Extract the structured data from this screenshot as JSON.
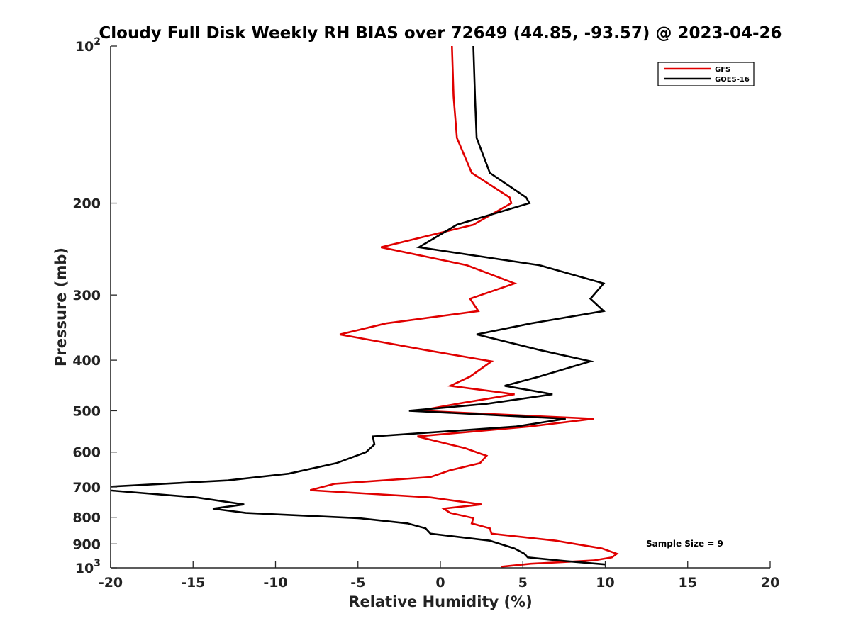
{
  "chart_data": {
    "type": "line",
    "title": "Cloudy Full Disk Weekly RH BIAS over 72649 (44.85, -93.57) @ 2023-04-26",
    "xlabel": "Relative Humidity (%)",
    "ylabel": "Pressure (mb)",
    "xlim": [
      -20,
      20
    ],
    "ylim": [
      100,
      1000
    ],
    "y_scale": "log",
    "y_reversed": true,
    "grid": false,
    "legend_position": "top-right",
    "x_ticks": [
      "-20",
      "-15",
      "-10",
      "-5",
      "0",
      "5",
      "10",
      "15",
      "20"
    ],
    "y_ticks": [
      {
        "value": 100,
        "base": "10",
        "exp": "2"
      },
      {
        "value": 200,
        "label": "200"
      },
      {
        "value": 300,
        "label": "300"
      },
      {
        "value": 400,
        "label": "400"
      },
      {
        "value": 500,
        "label": "500"
      },
      {
        "value": 600,
        "label": "600"
      },
      {
        "value": 700,
        "label": "700"
      },
      {
        "value": 800,
        "label": "800"
      },
      {
        "value": 900,
        "label": "900"
      },
      {
        "value": 1000,
        "base": "10",
        "exp": "3"
      }
    ],
    "annotation": "Sample Size = 9",
    "series": [
      {
        "name": "GFS",
        "color": "#e00000",
        "points": [
          [
            0.7,
            100
          ],
          [
            0.8,
            125
          ],
          [
            1.0,
            150
          ],
          [
            1.9,
            175
          ],
          [
            4.2,
            195
          ],
          [
            4.3,
            200
          ],
          [
            2.0,
            220
          ],
          [
            -3.6,
            243
          ],
          [
            1.6,
            263
          ],
          [
            4.5,
            285
          ],
          [
            1.8,
            305
          ],
          [
            2.3,
            322
          ],
          [
            -3.3,
            340
          ],
          [
            -6.1,
            357
          ],
          [
            -0.8,
            383
          ],
          [
            3.1,
            402
          ],
          [
            1.8,
            430
          ],
          [
            0.6,
            448
          ],
          [
            4.5,
            465
          ],
          [
            1.0,
            485
          ],
          [
            -1.3,
            500
          ],
          [
            9.3,
            518
          ],
          [
            5.4,
            536
          ],
          [
            -1.4,
            560
          ],
          [
            1.5,
            590
          ],
          [
            2.8,
            610
          ],
          [
            2.4,
            630
          ],
          [
            0.6,
            650
          ],
          [
            -0.6,
            670
          ],
          [
            -6.4,
            690
          ],
          [
            -7.9,
            710
          ],
          [
            -0.6,
            733
          ],
          [
            2.5,
            756
          ],
          [
            0.2,
            770
          ],
          [
            0.6,
            785
          ],
          [
            2.0,
            803
          ],
          [
            1.9,
            822
          ],
          [
            3.0,
            840
          ],
          [
            3.1,
            860
          ],
          [
            7.0,
            887
          ],
          [
            9.8,
            918
          ],
          [
            10.7,
            940
          ],
          [
            10.4,
            955
          ],
          [
            9.3,
            968
          ],
          [
            5.5,
            982
          ],
          [
            3.7,
            995
          ]
        ]
      },
      {
        "name": "GOES-16",
        "color": "#000000",
        "points": [
          [
            2.0,
            100
          ],
          [
            2.1,
            125
          ],
          [
            2.2,
            150
          ],
          [
            3.0,
            175
          ],
          [
            5.2,
            195
          ],
          [
            5.4,
            200
          ],
          [
            1.0,
            220
          ],
          [
            -1.3,
            243
          ],
          [
            6.0,
            263
          ],
          [
            9.9,
            285
          ],
          [
            9.1,
            305
          ],
          [
            9.9,
            322
          ],
          [
            5.5,
            340
          ],
          [
            2.2,
            357
          ],
          [
            6.1,
            383
          ],
          [
            9.1,
            402
          ],
          [
            6.0,
            430
          ],
          [
            3.9,
            448
          ],
          [
            6.8,
            465
          ],
          [
            2.8,
            485
          ],
          [
            -1.9,
            500
          ],
          [
            7.6,
            518
          ],
          [
            4.6,
            536
          ],
          [
            -4.1,
            560
          ],
          [
            -4.0,
            580
          ],
          [
            -4.5,
            600
          ],
          [
            -6.3,
            630
          ],
          [
            -9.2,
            660
          ],
          [
            -12.9,
            680
          ],
          [
            -20.5,
            700
          ],
          [
            -20.2,
            710
          ],
          [
            -14.8,
            733
          ],
          [
            -11.9,
            756
          ],
          [
            -13.8,
            770
          ],
          [
            -11.8,
            785
          ],
          [
            -5.0,
            803
          ],
          [
            -2.0,
            822
          ],
          [
            -0.9,
            840
          ],
          [
            -0.6,
            860
          ],
          [
            3.0,
            887
          ],
          [
            4.5,
            918
          ],
          [
            5.1,
            940
          ],
          [
            5.3,
            955
          ],
          [
            7.5,
            970
          ],
          [
            10.0,
            985
          ]
        ]
      }
    ]
  }
}
